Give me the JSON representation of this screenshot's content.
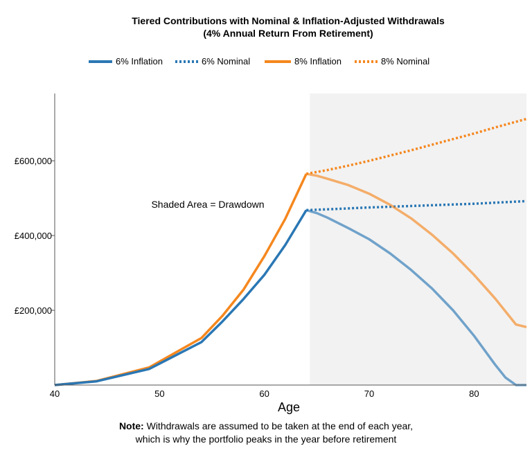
{
  "chart_data": {
    "type": "line",
    "title_line1": "Tiered Contributions with Nominal & Inflation-Adjusted Withdrawals",
    "title_line2": "(4% Annual Return From Retirement)",
    "xlabel": "Age",
    "ylabel": "",
    "xlim": [
      40,
      85
    ],
    "ylim": [
      0,
      780000
    ],
    "x_ticks": [
      40,
      50,
      60,
      70,
      80
    ],
    "x_tick_labels": [
      "40",
      "50",
      "60",
      "70",
      "80"
    ],
    "y_ticks": [
      200000,
      400000,
      600000
    ],
    "y_tick_labels": [
      "£200,000",
      "£400,000",
      "£600,000"
    ],
    "shaded_region": [
      65,
      85
    ],
    "annotation": "Shaded Area = Drawdown",
    "legend_position": "top",
    "grid": false,
    "series": [
      {
        "name": "6% Inflation",
        "color": "#2a77b4",
        "style": "solid",
        "points": [
          [
            40,
            0
          ],
          [
            44,
            10000
          ],
          [
            49,
            43000
          ],
          [
            54,
            115000
          ],
          [
            56,
            170000
          ],
          [
            58,
            230000
          ],
          [
            60,
            295000
          ],
          [
            62,
            375000
          ],
          [
            64,
            468000
          ],
          [
            65,
            460000
          ],
          [
            66,
            448000
          ],
          [
            68,
            420000
          ],
          [
            70,
            390000
          ],
          [
            72,
            352000
          ],
          [
            74,
            308000
          ],
          [
            76,
            258000
          ],
          [
            78,
            200000
          ],
          [
            80,
            132000
          ],
          [
            82,
            55000
          ],
          [
            83,
            20000
          ],
          [
            84,
            0
          ],
          [
            85,
            0
          ]
        ]
      },
      {
        "name": "6% Nominal",
        "color": "#2a77b4",
        "style": "dotted",
        "points": [
          [
            64,
            468000
          ],
          [
            65,
            469000
          ],
          [
            70,
            475000
          ],
          [
            75,
            480000
          ],
          [
            80,
            485000
          ],
          [
            85,
            492000
          ]
        ]
      },
      {
        "name": "8% Inflation",
        "color": "#f5871e",
        "style": "solid",
        "points": [
          [
            40,
            0
          ],
          [
            44,
            11000
          ],
          [
            49,
            47000
          ],
          [
            54,
            126000
          ],
          [
            56,
            185000
          ],
          [
            58,
            255000
          ],
          [
            60,
            345000
          ],
          [
            62,
            445000
          ],
          [
            64,
            565000
          ],
          [
            65,
            560000
          ],
          [
            66,
            552000
          ],
          [
            68,
            535000
          ],
          [
            70,
            512000
          ],
          [
            72,
            482000
          ],
          [
            74,
            446000
          ],
          [
            76,
            402000
          ],
          [
            78,
            352000
          ],
          [
            80,
            295000
          ],
          [
            82,
            232000
          ],
          [
            84,
            162000
          ],
          [
            85,
            155000
          ]
        ]
      },
      {
        "name": "8% Nominal",
        "color": "#f5871e",
        "style": "dotted",
        "points": [
          [
            64,
            565000
          ],
          [
            66,
            575000
          ],
          [
            68,
            587000
          ],
          [
            70,
            600000
          ],
          [
            72,
            614000
          ],
          [
            74,
            628000
          ],
          [
            76,
            643000
          ],
          [
            78,
            658000
          ],
          [
            80,
            673000
          ],
          [
            82,
            689000
          ],
          [
            85,
            712000
          ]
        ]
      }
    ]
  },
  "note": {
    "bold": "Note:",
    "line1": " Withdrawals are assumed to be taken at the end of each year,",
    "line2": "which is why the portfolio peaks in the year before retirement"
  }
}
